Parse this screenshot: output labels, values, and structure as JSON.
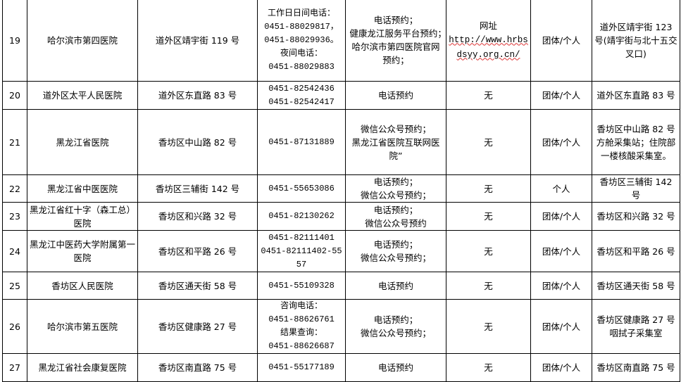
{
  "rows": [
    {
      "no": "19",
      "name": "哈尔滨市第四医院",
      "address": "道外区靖宇街 119 号",
      "phone": "工作日日间电话：\n0451-88029817，\n0451-88029936。\n夜间电话：\n0451-88029883",
      "booking": "电话预约；\n健康龙江服务平台预约；　　　哈尔滨市第四医院官网预约；",
      "website_label": "网址",
      "website_url": "http://www.hrbsdsyy.org.cn/",
      "service": "团体/个人",
      "site": "道外区靖宇街 123 号(靖宇街与北十五交叉口)"
    },
    {
      "no": "20",
      "name": "道外区太平人民医院",
      "address": "道外区东直路 83 号",
      "phone": "0451-82542436\n0451-82542417",
      "booking": "电话预约",
      "website": "无",
      "service": "团体/个人",
      "site": "道外区东直路 83 号"
    },
    {
      "no": "21",
      "name": "黑龙江省医院",
      "address": "香坊区中山路 82 号",
      "phone": "0451-87131889",
      "booking": "微信公众号预约；\n黑龙江省医院互联网医院”",
      "website": "无",
      "service": "团体/个人",
      "site": "香坊区中山路 82 号　方舱采集站；住院部一楼核酸采集室。"
    },
    {
      "no": "22",
      "name": "黑龙江省中医医院",
      "address": "香坊区三辅街 142 号",
      "phone": "0451-55653086",
      "booking": "电话预约；\n微信公众号预约；",
      "website": "无",
      "service": "个人",
      "site": "香坊区三辅街 142 号"
    },
    {
      "no": "23",
      "name": "黑龙江省红十字（森工总）医院",
      "address": "香坊区和兴路 32 号",
      "phone": "0451-82130262",
      "booking": "电话预约；\n微信公众号预约",
      "website": "无",
      "service": "团体/个人",
      "site": "香坊区和兴路 32 号"
    },
    {
      "no": "24",
      "name": "黑龙江中医药大学附属第一医院",
      "address": "香坊区和平路 26 号",
      "phone": "0451-82111401\n0451-82111402-5557",
      "booking": "电话预约；\n微信公众号预约；",
      "website": "无",
      "service": "团体/个人",
      "site": "香坊区和平路 26 号"
    },
    {
      "no": "25",
      "name": "香坊区人民医院",
      "address": "香坊区通天街 58 号",
      "phone": "0451-55109328",
      "booking": "电话预约",
      "website": "无",
      "service": "团体/个人",
      "site": "香坊区通天街 58 号"
    },
    {
      "no": "26",
      "name": "哈尔滨市第五医院",
      "address": "香坊区健康路 27 号",
      "phone": "咨询电话：\n0451-88626761\n结果查询：\n0451-88626687",
      "booking": "电话预约；\n微信公众号预约；",
      "website": "无",
      "service": "团体/个人",
      "site": "香坊区健康路 27 号咽拭子采集室"
    },
    {
      "no": "27",
      "name": "黑龙江省社会康复医院",
      "address": "香坊区南直路 75 号",
      "phone": "0451-55177189",
      "booking": "电话预约",
      "website": "无",
      "service": "团体/个人",
      "site": "香坊区南直路 75 号"
    }
  ]
}
